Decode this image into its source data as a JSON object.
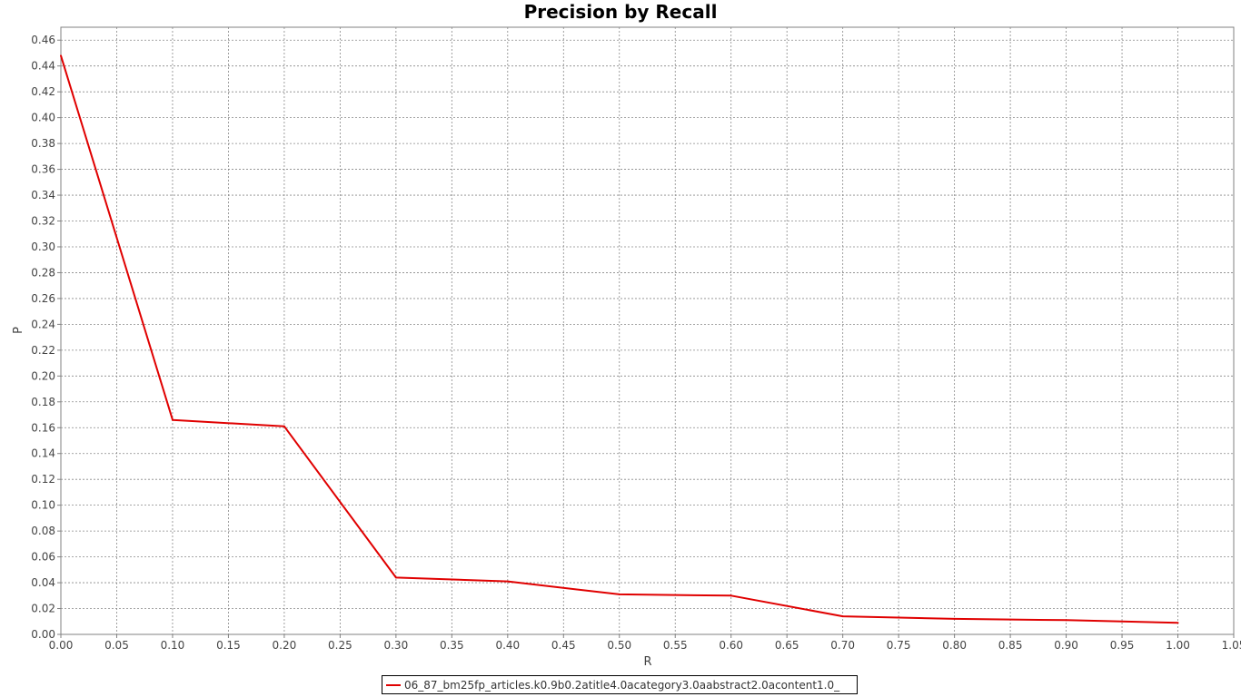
{
  "chart_data": {
    "type": "line",
    "title": "Precision by Recall",
    "xlabel": "R",
    "ylabel": "P",
    "xlim": [
      0.0,
      1.05
    ],
    "ylim": [
      0.0,
      0.47
    ],
    "x_ticks": [
      "0.00",
      "0.05",
      "0.10",
      "0.15",
      "0.20",
      "0.25",
      "0.30",
      "0.35",
      "0.40",
      "0.45",
      "0.50",
      "0.55",
      "0.60",
      "0.65",
      "0.70",
      "0.75",
      "0.80",
      "0.85",
      "0.90",
      "0.95",
      "1.00",
      "1.05"
    ],
    "y_ticks": [
      "0.00",
      "0.02",
      "0.04",
      "0.06",
      "0.08",
      "0.10",
      "0.12",
      "0.14",
      "0.16",
      "0.18",
      "0.20",
      "0.22",
      "0.24",
      "0.26",
      "0.28",
      "0.30",
      "0.32",
      "0.34",
      "0.36",
      "0.38",
      "0.40",
      "0.42",
      "0.44",
      "0.46"
    ],
    "grid": true,
    "legend_position": "bottom",
    "series": [
      {
        "name": "06_87_bm25fp_articles.k0.9b0.2atitle4.0acategory3.0aabstract2.0acontent1.0_",
        "color": "#e00000",
        "x": [
          0.0,
          0.1,
          0.2,
          0.3,
          0.4,
          0.5,
          0.6,
          0.7,
          0.8,
          0.9,
          1.0
        ],
        "y": [
          0.448,
          0.166,
          0.161,
          0.044,
          0.041,
          0.031,
          0.03,
          0.014,
          0.012,
          0.011,
          0.009
        ]
      }
    ]
  }
}
